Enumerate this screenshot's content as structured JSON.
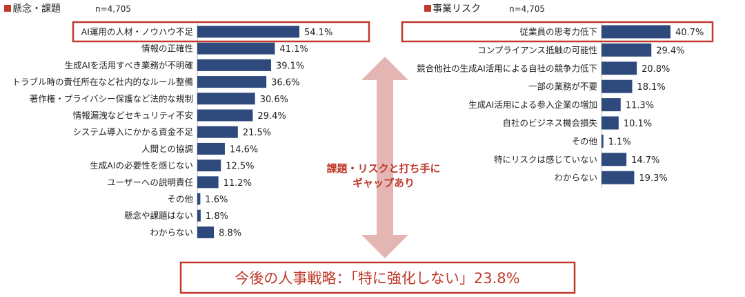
{
  "colors": {
    "bar": "#2e4a7d",
    "accent": "#c0392b",
    "arrow": "#e3b6b3"
  },
  "chart_data": [
    {
      "type": "bar",
      "orientation": "horizontal",
      "title": "懸念・課題",
      "n_label": "n=4,705",
      "categories": [
        "AI運用の人材・ノウハウ不足",
        "情報の正確性",
        "生成AIを活用すべき業務が不明確",
        "トラブル時の責任所在など社内的なルール整備",
        "著作権・プライバシー保護など法的な規制",
        "情報漏洩などセキュリティ不安",
        "システム導入にかかる資金不足",
        "人間との協調",
        "生成AIの必要性を感じない",
        "ユーザーへの説明責任",
        "その他",
        "懸念や課題はない",
        "わからない"
      ],
      "values": [
        54.1,
        41.1,
        39.1,
        36.6,
        30.6,
        29.4,
        21.5,
        14.6,
        12.5,
        11.2,
        1.6,
        1.8,
        8.8
      ],
      "value_labels": [
        "54.1%",
        "41.1%",
        "39.1%",
        "36.6%",
        "30.6%",
        "29.4%",
        "21.5%",
        "14.6%",
        "12.5%",
        "11.2%",
        "1.6%",
        "1.8%",
        "8.8%"
      ],
      "highlight_index": 0
    },
    {
      "type": "bar",
      "orientation": "horizontal",
      "title": "事業リスク",
      "n_label": "n=4,705",
      "categories": [
        "従業員の思考力低下",
        "コンプライアンス抵触の可能性",
        "競合他社の生成AI活用による自社の競争力低下",
        "一部の業務が不要",
        "生成AI活用による参入企業の増加",
        "自社のビジネス機会損失",
        "その他",
        "特にリスクは感じていない",
        "わからない"
      ],
      "values": [
        40.7,
        29.4,
        20.8,
        18.1,
        11.3,
        10.1,
        1.1,
        14.7,
        19.3
      ],
      "value_labels": [
        "40.7%",
        "29.4%",
        "20.8%",
        "18.1%",
        "11.3%",
        "10.1%",
        "1.1%",
        "14.7%",
        "19.3%"
      ],
      "highlight_index": 0
    }
  ],
  "gap_text": [
    "課題・リスクと打ち手に",
    "ギャップあり"
  ],
  "strategy_text": "今後の人事戦略：「特に強化しない」23.8%"
}
